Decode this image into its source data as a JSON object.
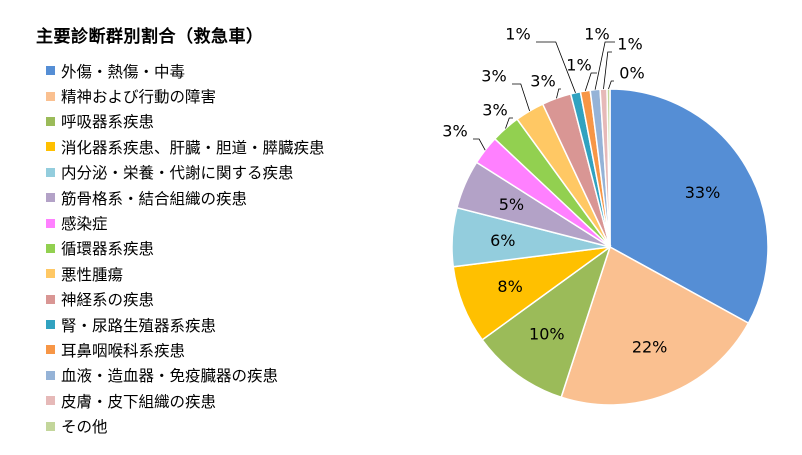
{
  "chart_data": {
    "type": "pie",
    "title": "主要診断群別割合（救急車）",
    "legend_position": "left",
    "slices": [
      {
        "name": "外傷・熱傷・中毒",
        "value": 33,
        "label": "33%",
        "color": "#558ED5"
      },
      {
        "name": "精神および行動の障害",
        "value": 22,
        "label": "22%",
        "color": "#FAC090"
      },
      {
        "name": "呼吸器系疾患",
        "value": 10,
        "label": "10%",
        "color": "#9BBB59"
      },
      {
        "name": "消化器系疾患、肝臓・胆道・膵臓疾患",
        "value": 8,
        "label": "8%",
        "color": "#FFC000"
      },
      {
        "name": "内分泌・栄養・代謝に関する疾患",
        "value": 6,
        "label": "6%",
        "color": "#93CDDD"
      },
      {
        "name": "筋骨格系・結合組織の疾患",
        "value": 5,
        "label": "5%",
        "color": "#B3A2C7"
      },
      {
        "name": "感染症",
        "value": 3,
        "label": "3%",
        "color": "#FF80FF"
      },
      {
        "name": "循環器系疾患",
        "value": 3,
        "label": "3%",
        "color": "#92D050"
      },
      {
        "name": "悪性腫瘍",
        "value": 3,
        "label": "3%",
        "color": "#FFC864"
      },
      {
        "name": "神経系の疾患",
        "value": 3,
        "label": "3%",
        "color": "#D99694"
      },
      {
        "name": "腎・尿路生殖器系疾患",
        "value": 1,
        "label": "1%",
        "color": "#31A2C0"
      },
      {
        "name": "耳鼻咽喉科系疾患",
        "value": 1,
        "label": "1%",
        "color": "#F79646"
      },
      {
        "name": "血液・造血器・免疫臓器の疾患",
        "value": 1,
        "label": "1%",
        "color": "#95B3D7"
      },
      {
        "name": "皮膚・皮下組織の疾患",
        "value": 0.7,
        "label": "1%",
        "color": "#E6B9B8"
      },
      {
        "name": "その他",
        "value": 0.3,
        "label": "0%",
        "color": "#C3D69B"
      }
    ]
  }
}
